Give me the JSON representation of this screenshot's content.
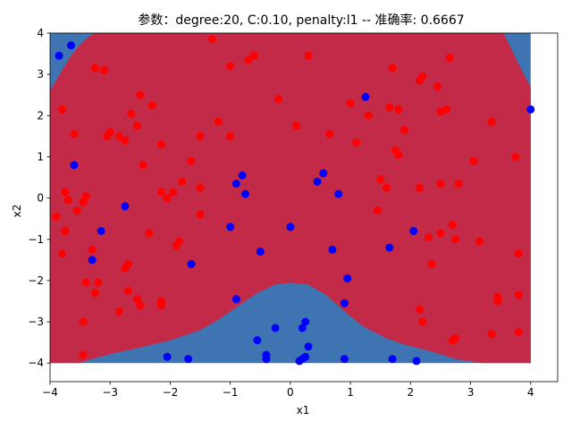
{
  "chart_data": {
    "type": "scatter",
    "title": "参数：degree:20, C:0.10, penalty:l1 -- 准确率: 0.6667",
    "xlabel": "x1",
    "ylabel": "x2",
    "xlim": [
      -4,
      4.45
    ],
    "ylim": [
      -4.45,
      4
    ],
    "x_ticks": [
      "−4",
      "−3",
      "−2",
      "−1",
      "0",
      "1",
      "2",
      "3",
      "4"
    ],
    "y_ticks": [
      "−4",
      "−3",
      "−2",
      "−1",
      "0",
      "1",
      "2",
      "3",
      "4"
    ],
    "grid": false,
    "colors": {
      "class_0_region": "#c22a47",
      "class_1_region": "#3e74b2",
      "class_0_points": "#ff0000",
      "class_1_points": "#0000ff"
    },
    "series": [
      {
        "class": "red",
        "points": [
          [
            -3.8,
            2.15
          ],
          [
            -3.6,
            1.55
          ],
          [
            -3.55,
            -0.3
          ],
          [
            -3.45,
            -0.1
          ],
          [
            -3.4,
            0.05
          ],
          [
            -3.3,
            -1.25
          ],
          [
            -3.2,
            -2.05
          ],
          [
            -3.25,
            -2.3
          ],
          [
            -3.4,
            -2.05
          ],
          [
            -3.75,
            0.15
          ],
          [
            -3.7,
            -0.05
          ],
          [
            -3.75,
            -0.8
          ],
          [
            -3.8,
            -1.35
          ],
          [
            -3.9,
            -0.45
          ],
          [
            -3.45,
            -3.0
          ],
          [
            -3.45,
            -3.8
          ],
          [
            -3.25,
            3.15
          ],
          [
            -3.1,
            3.1
          ],
          [
            -3.05,
            1.5
          ],
          [
            -3.0,
            1.6
          ],
          [
            -2.85,
            1.5
          ],
          [
            -2.75,
            1.4
          ],
          [
            -2.65,
            2.05
          ],
          [
            -2.55,
            1.75
          ],
          [
            -2.5,
            2.5
          ],
          [
            -2.3,
            2.25
          ],
          [
            -2.15,
            1.3
          ],
          [
            -2.45,
            0.8
          ],
          [
            -2.35,
            -0.85
          ],
          [
            -2.7,
            -1.6
          ],
          [
            -2.75,
            -1.7
          ],
          [
            -2.55,
            -2.45
          ],
          [
            -2.7,
            -2.25
          ],
          [
            -2.5,
            -2.6
          ],
          [
            -2.85,
            -2.75
          ],
          [
            -2.15,
            -2.5
          ],
          [
            -2.15,
            -2.6
          ],
          [
            -2.15,
            0.15
          ],
          [
            -2.05,
            0.0
          ],
          [
            -1.95,
            0.15
          ],
          [
            -1.8,
            0.4
          ],
          [
            -1.85,
            -1.05
          ],
          [
            -1.9,
            -1.15
          ],
          [
            -1.65,
            0.9
          ],
          [
            -1.5,
            1.5
          ],
          [
            -1.5,
            -0.4
          ],
          [
            -1.5,
            0.25
          ],
          [
            -1.3,
            3.85
          ],
          [
            -1.2,
            1.85
          ],
          [
            -1.0,
            1.5
          ],
          [
            -1.0,
            3.2
          ],
          [
            -0.7,
            3.35
          ],
          [
            -0.6,
            3.45
          ],
          [
            -0.2,
            2.4
          ],
          [
            0.1,
            1.75
          ],
          [
            0.3,
            3.45
          ],
          [
            0.65,
            1.55
          ],
          [
            1.0,
            2.3
          ],
          [
            1.1,
            1.35
          ],
          [
            1.3,
            2.0
          ],
          [
            1.45,
            -0.3
          ],
          [
            1.5,
            0.45
          ],
          [
            1.6,
            0.25
          ],
          [
            1.65,
            2.2
          ],
          [
            1.7,
            3.15
          ],
          [
            1.75,
            1.15
          ],
          [
            1.8,
            1.05
          ],
          [
            1.8,
            2.15
          ],
          [
            1.9,
            1.65
          ],
          [
            2.15,
            2.85
          ],
          [
            2.15,
            0.25
          ],
          [
            2.2,
            2.95
          ],
          [
            2.3,
            -0.95
          ],
          [
            2.35,
            -1.6
          ],
          [
            2.45,
            2.7
          ],
          [
            2.5,
            0.35
          ],
          [
            2.5,
            2.1
          ],
          [
            2.6,
            2.15
          ],
          [
            2.5,
            -0.85
          ],
          [
            2.65,
            3.4
          ],
          [
            2.7,
            -0.65
          ],
          [
            2.75,
            -1.0
          ],
          [
            2.7,
            -3.45
          ],
          [
            2.75,
            -3.4
          ],
          [
            2.8,
            0.35
          ],
          [
            3.05,
            0.9
          ],
          [
            3.15,
            -1.05
          ],
          [
            3.35,
            1.85
          ],
          [
            3.45,
            -2.5
          ],
          [
            3.45,
            -2.4
          ],
          [
            3.75,
            1.0
          ],
          [
            3.8,
            -1.35
          ],
          [
            3.8,
            -2.35
          ],
          [
            3.8,
            -3.25
          ],
          [
            3.35,
            -3.3
          ],
          [
            2.15,
            -2.7
          ],
          [
            2.2,
            -3.0
          ]
        ]
      },
      {
        "class": "blue",
        "points": [
          [
            -3.65,
            3.7
          ],
          [
            -3.85,
            3.45
          ],
          [
            -3.6,
            0.8
          ],
          [
            -3.15,
            -0.8
          ],
          [
            -3.3,
            -1.5
          ],
          [
            -2.75,
            -0.2
          ],
          [
            -2.05,
            -3.85
          ],
          [
            -1.7,
            -3.9
          ],
          [
            -1.65,
            -1.6
          ],
          [
            -1.0,
            -0.7
          ],
          [
            -0.9,
            0.35
          ],
          [
            -0.8,
            0.55
          ],
          [
            -0.75,
            0.1
          ],
          [
            -0.9,
            -2.45
          ],
          [
            -0.5,
            -1.3
          ],
          [
            -0.55,
            -3.45
          ],
          [
            -0.4,
            -3.8
          ],
          [
            -0.4,
            -3.9
          ],
          [
            -0.25,
            -3.15
          ],
          [
            0.0,
            -0.7
          ],
          [
            0.15,
            -3.95
          ],
          [
            0.2,
            -3.9
          ],
          [
            0.25,
            -3.85
          ],
          [
            0.2,
            -3.15
          ],
          [
            0.25,
            -3.0
          ],
          [
            0.3,
            -3.6
          ],
          [
            0.45,
            0.4
          ],
          [
            0.55,
            0.6
          ],
          [
            0.7,
            -1.25
          ],
          [
            0.8,
            0.1
          ],
          [
            0.9,
            -2.55
          ],
          [
            0.9,
            -3.9
          ],
          [
            0.95,
            -1.95
          ],
          [
            1.25,
            2.45
          ],
          [
            1.65,
            -1.2
          ],
          [
            1.7,
            -3.9
          ],
          [
            2.05,
            -0.8
          ],
          [
            2.1,
            -3.95
          ],
          [
            4.0,
            2.15
          ]
        ]
      }
    ]
  }
}
